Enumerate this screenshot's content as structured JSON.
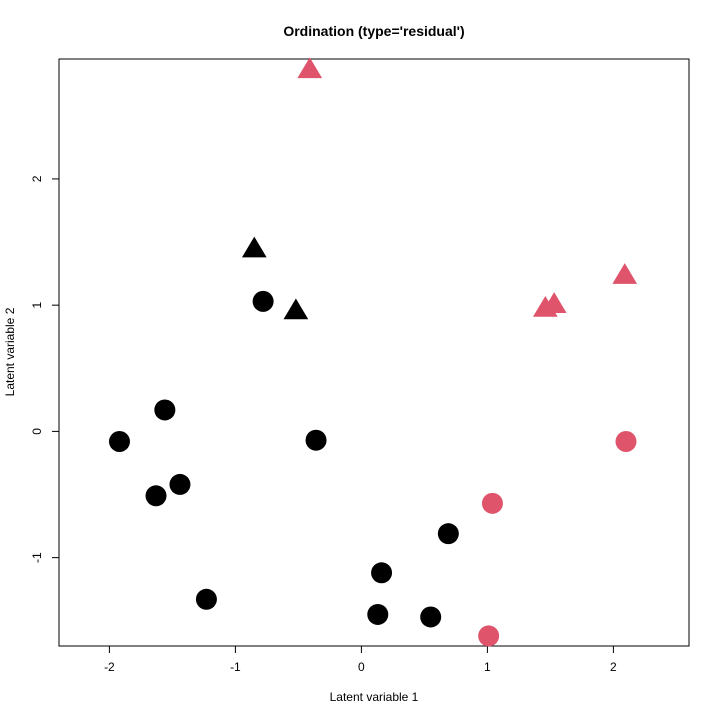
{
  "chart_data": {
    "type": "scatter",
    "title": "Ordination (type='residual')",
    "xlabel": "Latent variable 1",
    "ylabel": "Latent variable 2",
    "xlim": [
      -2.4,
      2.6
    ],
    "ylim": [
      -1.7,
      2.95
    ],
    "xticks": [
      -2,
      -1,
      0,
      1,
      2
    ],
    "yticks": [
      -1,
      0,
      1,
      2
    ],
    "grid": false,
    "legend": "none",
    "colors": {
      "black": "#000000",
      "red": "#df536b"
    },
    "series": [
      {
        "color": "black",
        "marker": "circle",
        "x": [
          -1.92,
          -1.56,
          -1.63,
          -1.44,
          -1.23,
          -0.78,
          -0.36,
          0.13,
          0.16,
          0.55,
          0.69
        ],
        "y": [
          -0.08,
          0.17,
          -0.51,
          -0.42,
          -1.33,
          1.03,
          -0.07,
          -1.45,
          -1.12,
          -1.47,
          -0.81
        ]
      },
      {
        "color": "black",
        "marker": "triangle",
        "x": [
          -0.85,
          -0.52
        ],
        "y": [
          1.44,
          0.95
        ]
      },
      {
        "color": "red",
        "marker": "circle",
        "x": [
          1.04,
          1.01,
          2.1
        ],
        "y": [
          -0.57,
          -1.62,
          -0.08
        ]
      },
      {
        "color": "red",
        "marker": "triangle",
        "x": [
          -0.41,
          1.46,
          1.53,
          2.09
        ],
        "y": [
          2.86,
          0.97,
          1.0,
          1.23
        ]
      }
    ]
  }
}
